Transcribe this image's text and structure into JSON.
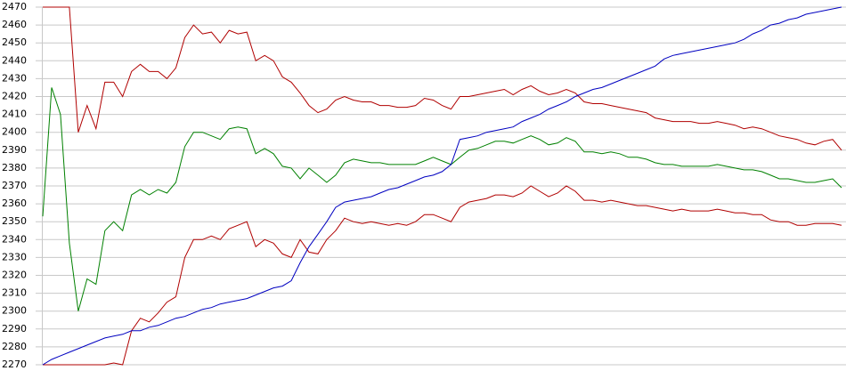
{
  "chart_data": {
    "type": "line",
    "categories": [
      null,
      null,
      null,
      null,
      null,
      null,
      null,
      null,
      null,
      null,
      null,
      null,
      null,
      null,
      null,
      null,
      null,
      null,
      null,
      null,
      null,
      null,
      null,
      null,
      null,
      null,
      null,
      null,
      null,
      null,
      null,
      null,
      null,
      null,
      null,
      null,
      null,
      null,
      null,
      null,
      null,
      null,
      null,
      null,
      null,
      null,
      null,
      null,
      null,
      null,
      null,
      null,
      null,
      null,
      null,
      null,
      null,
      null,
      null,
      null,
      null,
      null,
      null,
      null,
      null,
      null,
      null,
      null,
      null,
      null,
      null,
      null,
      null,
      null,
      null,
      null,
      null,
      null,
      null,
      null,
      null,
      null,
      null,
      null,
      null,
      null,
      null,
      null,
      null,
      null,
      null
    ],
    "series": [
      {
        "color": "#b00000",
        "values": [
          2470,
          2470,
          2470,
          2470,
          2400,
          2415,
          2402,
          2428,
          2428,
          2420,
          2434,
          2438,
          2434,
          2434,
          2430,
          2436,
          2453,
          2460,
          2455,
          2456,
          2450,
          2457,
          2455,
          2456,
          2440,
          2443,
          2440,
          2431,
          2428,
          2422,
          2415,
          2411,
          2413,
          2418,
          2420,
          2418,
          2417,
          2417,
          2415,
          2415,
          2414,
          2414,
          2415,
          2419,
          2418,
          2415,
          2413,
          2420,
          2420,
          2421,
          2422,
          2423,
          2424,
          2421,
          2424,
          2426,
          2423,
          2421,
          2422,
          2424,
          2422,
          2417,
          2416,
          2416,
          2415,
          2414,
          2413,
          2412,
          2411,
          2408,
          2407,
          2406,
          2406,
          2406,
          2405,
          2405,
          2406,
          2405,
          2404,
          2402,
          2403,
          2402,
          2400,
          2398,
          2397,
          2396,
          2394,
          2393,
          2395,
          2396,
          2390
        ]
      },
      {
        "color": "#008000",
        "values": [
          2353,
          2425,
          2410,
          2338,
          2300,
          2318,
          2315,
          2345,
          2350,
          2345,
          2365,
          2368,
          2365,
          2368,
          2366,
          2372,
          2392,
          2400,
          2400,
          2398,
          2396,
          2402,
          2403,
          2402,
          2388,
          2391,
          2388,
          2381,
          2380,
          2374,
          2380,
          2376,
          2372,
          2376,
          2383,
          2385,
          2384,
          2383,
          2383,
          2382,
          2382,
          2382,
          2382,
          2384,
          2386,
          2384,
          2382,
          2386,
          2390,
          2391,
          2393,
          2395,
          2395,
          2394,
          2396,
          2398,
          2396,
          2393,
          2394,
          2397,
          2395,
          2389,
          2389,
          2388,
          2389,
          2388,
          2386,
          2386,
          2385,
          2383,
          2382,
          2382,
          2381,
          2381,
          2381,
          2381,
          2382,
          2381,
          2380,
          2379,
          2379,
          2378,
          2376,
          2374,
          2374,
          2373,
          2372,
          2372,
          2373,
          2374,
          2369
        ]
      },
      {
        "color": "#b00000",
        "values": [
          2270,
          2270,
          2270,
          2270,
          2270,
          2270,
          2270,
          2270,
          2271,
          2270,
          2289,
          2296,
          2294,
          2299,
          2305,
          2308,
          2330,
          2340,
          2340,
          2342,
          2340,
          2346,
          2348,
          2350,
          2336,
          2340,
          2338,
          2332,
          2330,
          2340,
          2333,
          2332,
          2340,
          2345,
          2352,
          2350,
          2349,
          2350,
          2349,
          2348,
          2349,
          2348,
          2350,
          2354,
          2354,
          2352,
          2350,
          2358,
          2361,
          2362,
          2363,
          2365,
          2365,
          2364,
          2366,
          2370,
          2367,
          2364,
          2366,
          2370,
          2367,
          2362,
          2362,
          2361,
          2362,
          2361,
          2360,
          2359,
          2359,
          2358,
          2357,
          2356,
          2357,
          2356,
          2356,
          2356,
          2357,
          2356,
          2355,
          2355,
          2354,
          2354,
          2351,
          2350,
          2350,
          2348,
          2348,
          2349,
          2349,
          2349,
          2348
        ]
      },
      {
        "color": "#0000c0",
        "values": [
          2270,
          2273,
          2275,
          2277,
          2279,
          2281,
          2283,
          2285,
          2286,
          2287,
          2289,
          2289,
          2291,
          2292,
          2294,
          2296,
          2297,
          2299,
          2301,
          2302,
          2304,
          2305,
          2306,
          2307,
          2309,
          2311,
          2313,
          2314,
          2317,
          2327,
          2336,
          2343,
          2350,
          2358,
          2361,
          2362,
          2363,
          2364,
          2366,
          2368,
          2369,
          2371,
          2373,
          2375,
          2376,
          2378,
          2382,
          2396,
          2397,
          2398,
          2400,
          2401,
          2402,
          2403,
          2406,
          2408,
          2410,
          2413,
          2415,
          2417,
          2420,
          2422,
          2424,
          2425,
          2427,
          2429,
          2431,
          2433,
          2435,
          2437,
          2441,
          2443,
          2444,
          2445,
          2446,
          2447,
          2448,
          2449,
          2450,
          2452,
          2455,
          2457,
          2460,
          2461,
          2463,
          2464,
          2466,
          2467,
          2468,
          2469,
          2470
        ]
      }
    ],
    "ylim": [
      2270,
      2470
    ],
    "yticks": [
      2270,
      2280,
      2290,
      2300,
      2310,
      2320,
      2330,
      2340,
      2350,
      2360,
      2370,
      2380,
      2390,
      2400,
      2410,
      2420,
      2430,
      2440,
      2450,
      2460,
      2470
    ],
    "grid": true
  }
}
